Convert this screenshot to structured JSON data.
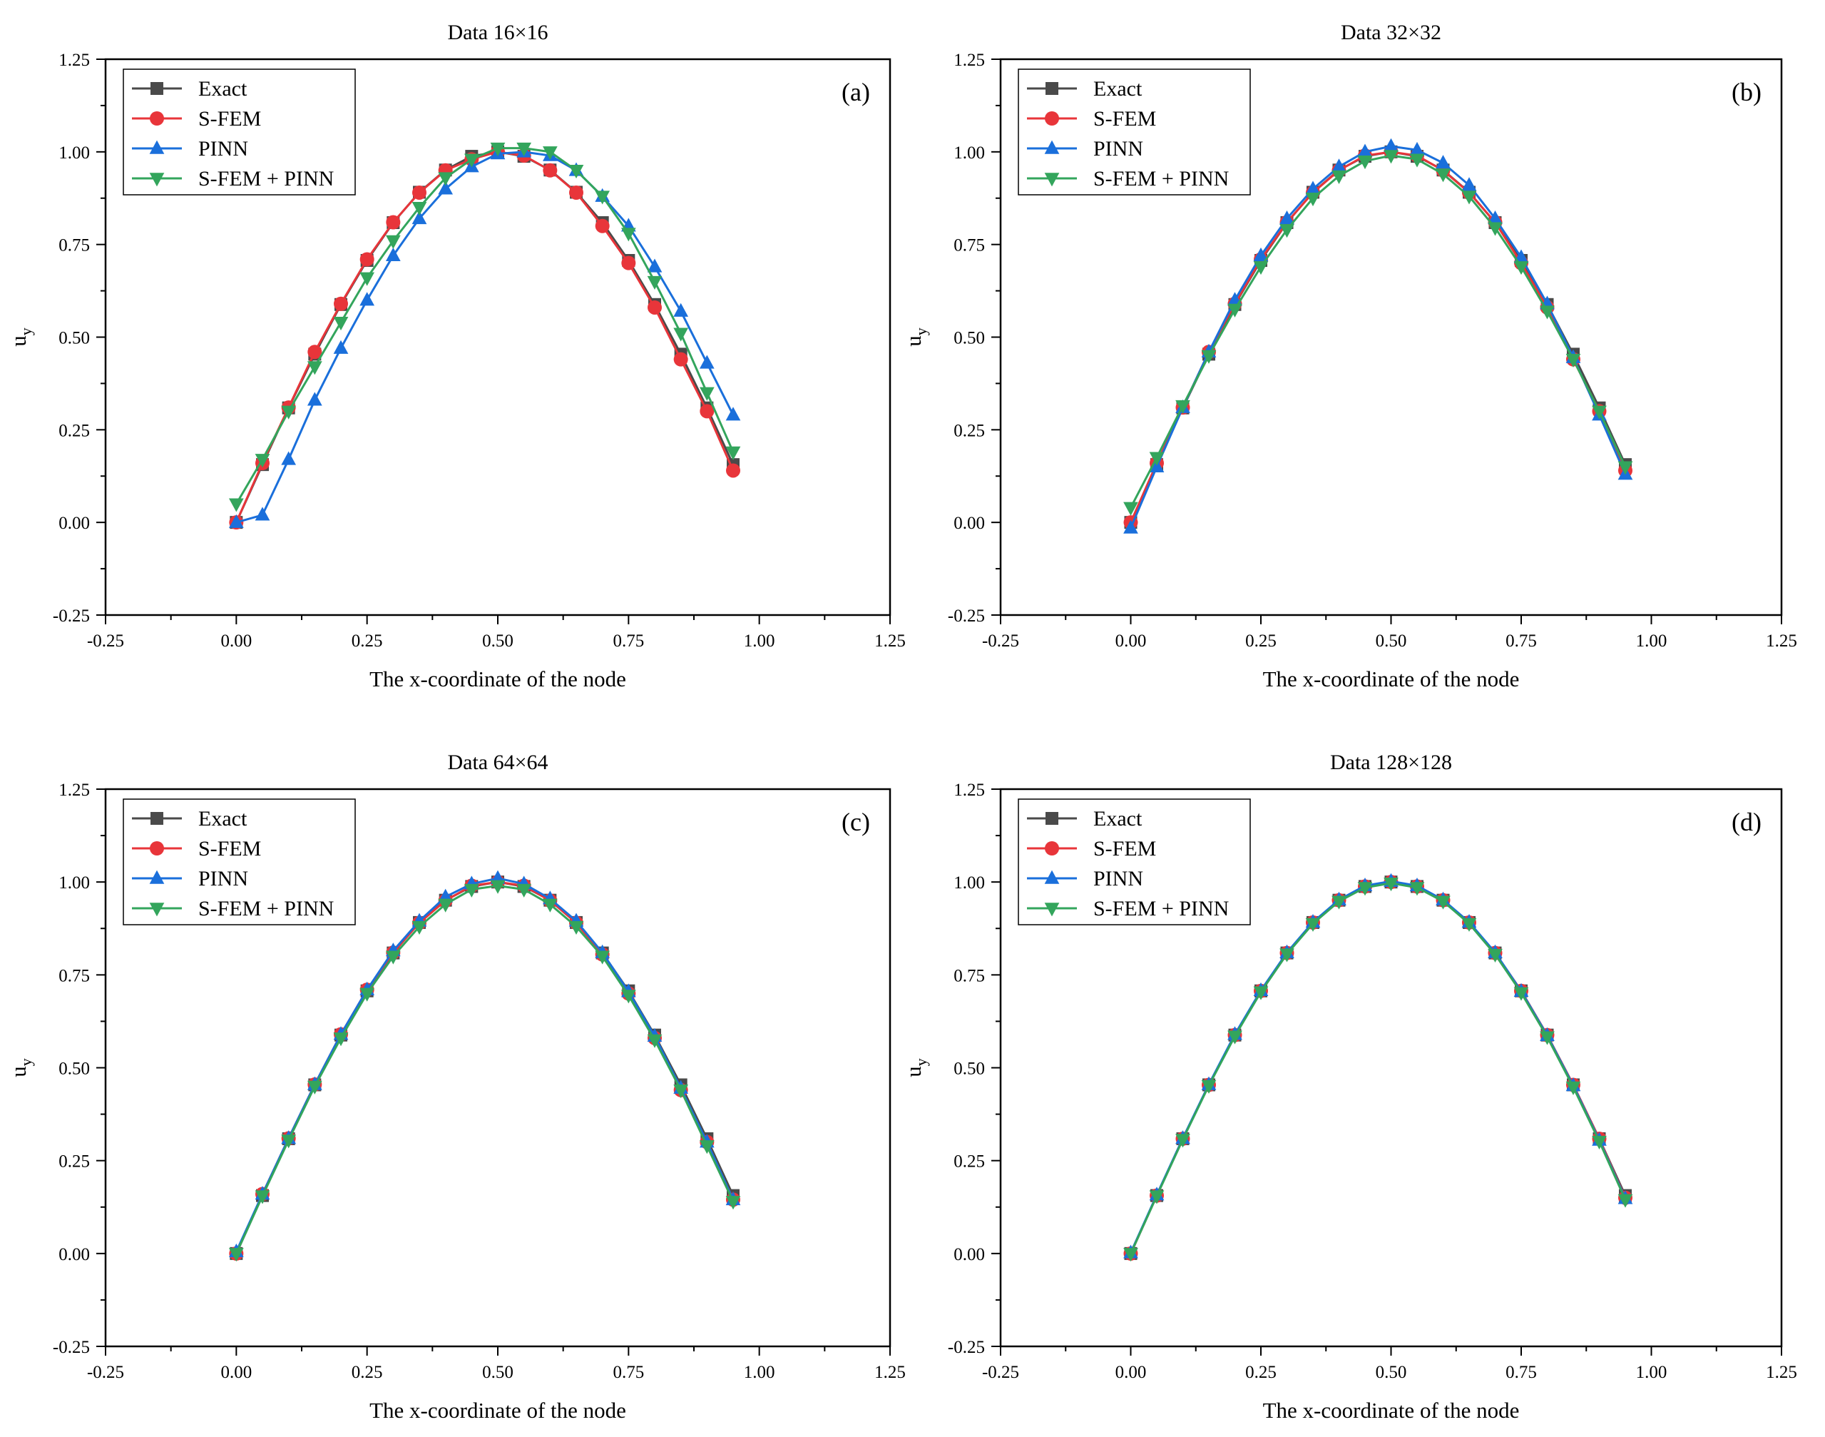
{
  "figure": {
    "legend_labels": [
      "Exact",
      "S-FEM",
      "PINN",
      "S-FEM + PINN"
    ],
    "series_colors": {
      "Exact": "#4a4a4a",
      "S-FEM": "#e8353a",
      "PINN": "#1a6fdb",
      "S-FEM + PINN": "#33a55c"
    },
    "series_markers": {
      "Exact": "square",
      "S-FEM": "circle",
      "PINN": "triangle-up",
      "S-FEM + PINN": "triangle-down"
    }
  },
  "chart_data": [
    {
      "type": "line",
      "title": "Data 16×16",
      "panel_label": "(a)",
      "xlabel": "The x-coordinate of the node",
      "ylabel": "u_y",
      "xlim": [
        -0.25,
        1.25
      ],
      "ylim": [
        -0.25,
        1.25
      ],
      "xticks": [
        "-0.25",
        "0.00",
        "0.25",
        "0.50",
        "0.75",
        "1.00",
        "1.25"
      ],
      "yticks": [
        "-0.25",
        "0.00",
        "0.25",
        "0.50",
        "0.75",
        "1.00",
        "1.25"
      ],
      "legend_position": "top-left",
      "grid": false,
      "x": [
        0,
        0.05,
        0.1,
        0.15,
        0.2,
        0.25,
        0.3,
        0.35,
        0.4,
        0.45,
        0.5,
        0.55,
        0.6,
        0.65,
        0.7,
        0.75,
        0.8,
        0.85,
        0.9,
        0.95
      ],
      "series": [
        {
          "name": "Exact",
          "values": [
            0,
            0.156,
            0.309,
            0.454,
            0.588,
            0.707,
            0.809,
            0.891,
            0.951,
            0.988,
            1.0,
            0.988,
            0.951,
            0.891,
            0.809,
            0.707,
            0.588,
            0.454,
            0.309,
            0.156
          ]
        },
        {
          "name": "S-FEM",
          "values": [
            0,
            0.16,
            0.31,
            0.46,
            0.59,
            0.71,
            0.81,
            0.89,
            0.95,
            0.98,
            1.0,
            0.99,
            0.95,
            0.89,
            0.8,
            0.7,
            0.58,
            0.44,
            0.3,
            0.14
          ]
        },
        {
          "name": "PINN",
          "values": [
            0,
            0.02,
            0.17,
            0.33,
            0.47,
            0.6,
            0.72,
            0.82,
            0.9,
            0.96,
            0.995,
            1.0,
            0.99,
            0.95,
            0.88,
            0.8,
            0.69,
            0.57,
            0.43,
            0.29
          ]
        },
        {
          "name": "S-FEM + PINN",
          "values": [
            0.05,
            0.17,
            0.3,
            0.42,
            0.54,
            0.66,
            0.76,
            0.85,
            0.93,
            0.98,
            1.01,
            1.01,
            1.0,
            0.95,
            0.88,
            0.78,
            0.65,
            0.51,
            0.35,
            0.19
          ]
        }
      ]
    },
    {
      "type": "line",
      "title": "Data 32×32",
      "panel_label": "(b)",
      "xlabel": "The x-coordinate of the node",
      "ylabel": "u_y",
      "xlim": [
        -0.25,
        1.25
      ],
      "ylim": [
        -0.25,
        1.25
      ],
      "xticks": [
        "-0.25",
        "0.00",
        "0.25",
        "0.50",
        "0.75",
        "1.00",
        "1.25"
      ],
      "yticks": [
        "-0.25",
        "0.00",
        "0.25",
        "0.50",
        "0.75",
        "1.00",
        "1.25"
      ],
      "legend_position": "top-left",
      "grid": false,
      "x": [
        0,
        0.05,
        0.1,
        0.15,
        0.2,
        0.25,
        0.3,
        0.35,
        0.4,
        0.45,
        0.5,
        0.55,
        0.6,
        0.65,
        0.7,
        0.75,
        0.8,
        0.85,
        0.9,
        0.95
      ],
      "series": [
        {
          "name": "Exact",
          "values": [
            0,
            0.156,
            0.309,
            0.454,
            0.588,
            0.707,
            0.809,
            0.891,
            0.951,
            0.988,
            1.0,
            0.988,
            0.951,
            0.891,
            0.809,
            0.707,
            0.588,
            0.454,
            0.309,
            0.156
          ]
        },
        {
          "name": "S-FEM",
          "values": [
            0,
            0.16,
            0.31,
            0.46,
            0.59,
            0.71,
            0.81,
            0.89,
            0.95,
            0.99,
            1.0,
            0.99,
            0.95,
            0.89,
            0.81,
            0.7,
            0.58,
            0.44,
            0.3,
            0.14
          ]
        },
        {
          "name": "PINN",
          "values": [
            -0.015,
            0.15,
            0.31,
            0.46,
            0.6,
            0.72,
            0.82,
            0.9,
            0.96,
            1.0,
            1.015,
            1.005,
            0.97,
            0.91,
            0.82,
            0.715,
            0.59,
            0.445,
            0.29,
            0.13
          ]
        },
        {
          "name": "S-FEM + PINN",
          "values": [
            0.04,
            0.175,
            0.315,
            0.45,
            0.575,
            0.69,
            0.79,
            0.875,
            0.935,
            0.975,
            0.99,
            0.98,
            0.94,
            0.88,
            0.795,
            0.69,
            0.57,
            0.44,
            0.3,
            0.15
          ]
        }
      ]
    },
    {
      "type": "line",
      "title": "Data 64×64",
      "panel_label": "(c)",
      "xlabel": "The x-coordinate of the node",
      "ylabel": "u_y",
      "xlim": [
        -0.25,
        1.25
      ],
      "ylim": [
        -0.25,
        1.25
      ],
      "xticks": [
        "-0.25",
        "0.00",
        "0.25",
        "0.50",
        "0.75",
        "1.00",
        "1.25"
      ],
      "yticks": [
        "-0.25",
        "0.00",
        "0.25",
        "0.50",
        "0.75",
        "1.00",
        "1.25"
      ],
      "legend_position": "top-left",
      "grid": false,
      "x": [
        0,
        0.05,
        0.1,
        0.15,
        0.2,
        0.25,
        0.3,
        0.35,
        0.4,
        0.45,
        0.5,
        0.55,
        0.6,
        0.65,
        0.7,
        0.75,
        0.8,
        0.85,
        0.9,
        0.95
      ],
      "series": [
        {
          "name": "Exact",
          "values": [
            0,
            0.156,
            0.309,
            0.454,
            0.588,
            0.707,
            0.809,
            0.891,
            0.951,
            0.988,
            1.0,
            0.988,
            0.951,
            0.891,
            0.809,
            0.707,
            0.588,
            0.454,
            0.309,
            0.156
          ]
        },
        {
          "name": "S-FEM",
          "values": [
            0,
            0.16,
            0.31,
            0.455,
            0.59,
            0.71,
            0.81,
            0.89,
            0.95,
            0.99,
            1.0,
            0.99,
            0.95,
            0.89,
            0.805,
            0.7,
            0.58,
            0.44,
            0.3,
            0.145
          ]
        },
        {
          "name": "PINN",
          "values": [
            0.005,
            0.16,
            0.31,
            0.455,
            0.59,
            0.71,
            0.815,
            0.895,
            0.96,
            0.995,
            1.01,
            0.995,
            0.955,
            0.895,
            0.81,
            0.705,
            0.585,
            0.445,
            0.3,
            0.145
          ]
        },
        {
          "name": "S-FEM + PINN",
          "values": [
            0.0,
            0.155,
            0.305,
            0.45,
            0.58,
            0.7,
            0.8,
            0.88,
            0.94,
            0.98,
            0.99,
            0.98,
            0.94,
            0.88,
            0.8,
            0.695,
            0.575,
            0.44,
            0.29,
            0.14
          ]
        }
      ]
    },
    {
      "type": "line",
      "title": "Data 128×128",
      "panel_label": "(d)",
      "xlabel": "The x-coordinate of the node",
      "ylabel": "u_y",
      "xlim": [
        -0.25,
        1.25
      ],
      "ylim": [
        -0.25,
        1.25
      ],
      "xticks": [
        "-0.25",
        "0.00",
        "0.25",
        "0.50",
        "0.75",
        "1.00",
        "1.25"
      ],
      "yticks": [
        "-0.25",
        "0.00",
        "0.25",
        "0.50",
        "0.75",
        "1.00",
        "1.25"
      ],
      "legend_position": "top-left",
      "grid": false,
      "x": [
        0,
        0.05,
        0.1,
        0.15,
        0.2,
        0.25,
        0.3,
        0.35,
        0.4,
        0.45,
        0.5,
        0.55,
        0.6,
        0.65,
        0.7,
        0.75,
        0.8,
        0.85,
        0.9,
        0.95
      ],
      "series": [
        {
          "name": "Exact",
          "values": [
            0,
            0.156,
            0.309,
            0.454,
            0.588,
            0.707,
            0.809,
            0.891,
            0.951,
            0.988,
            1.0,
            0.988,
            0.951,
            0.891,
            0.809,
            0.707,
            0.588,
            0.454,
            0.309,
            0.156
          ]
        },
        {
          "name": "S-FEM",
          "values": [
            0,
            0.156,
            0.309,
            0.454,
            0.588,
            0.707,
            0.809,
            0.891,
            0.951,
            0.988,
            1.0,
            0.988,
            0.951,
            0.891,
            0.809,
            0.707,
            0.588,
            0.454,
            0.309,
            0.15
          ]
        },
        {
          "name": "PINN",
          "values": [
            0.002,
            0.158,
            0.31,
            0.455,
            0.59,
            0.708,
            0.81,
            0.892,
            0.952,
            0.99,
            1.002,
            0.99,
            0.952,
            0.892,
            0.81,
            0.706,
            0.587,
            0.452,
            0.305,
            0.148
          ]
        },
        {
          "name": "S-FEM + PINN",
          "values": [
            0.0,
            0.155,
            0.307,
            0.452,
            0.585,
            0.704,
            0.806,
            0.888,
            0.948,
            0.985,
            0.997,
            0.985,
            0.948,
            0.888,
            0.805,
            0.702,
            0.583,
            0.448,
            0.302,
            0.145
          ]
        }
      ]
    }
  ]
}
